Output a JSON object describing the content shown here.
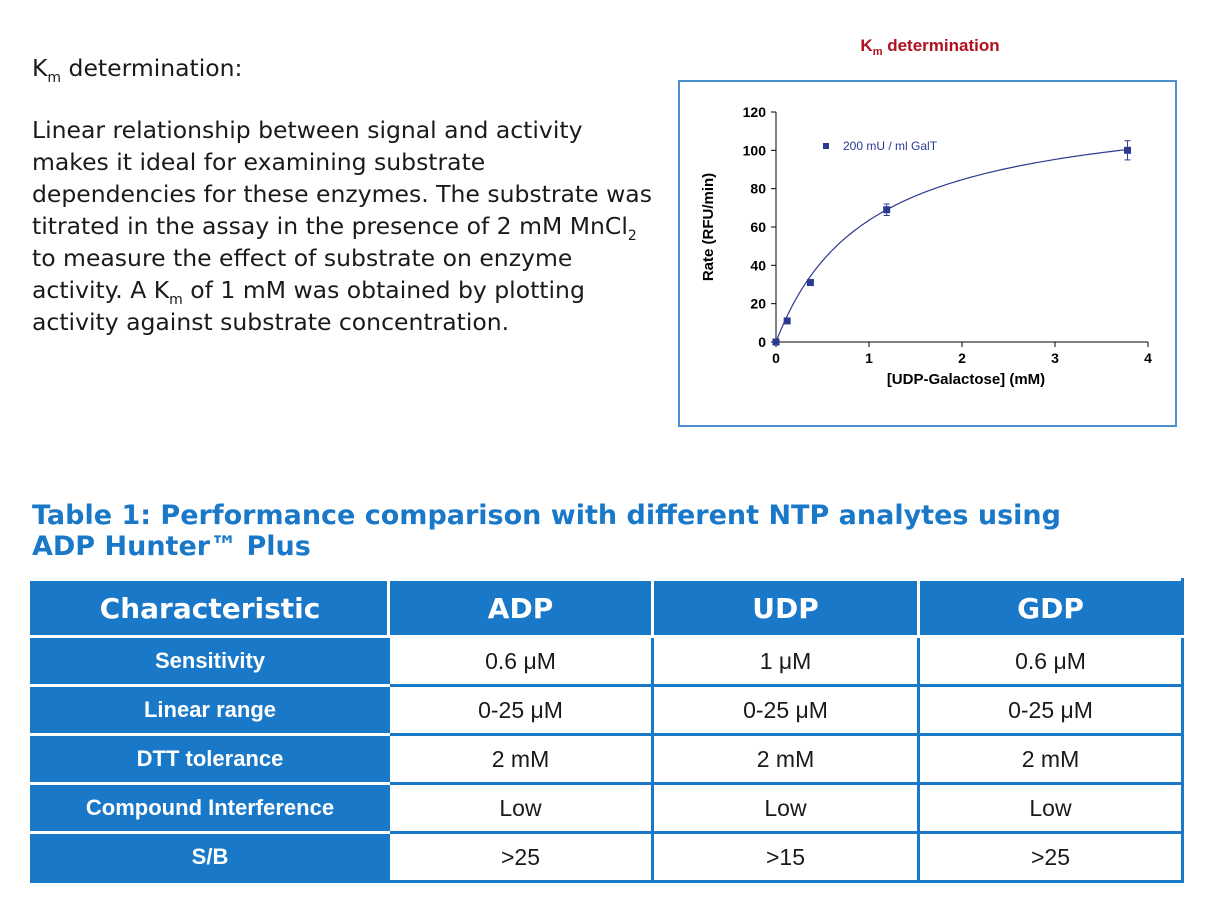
{
  "intro": {
    "heading_k": "K",
    "heading_sub": "m",
    "heading_rest": " determination:",
    "p_line1": "Linear relationship between signal and activity makes it ideal for examining substrate dependencies for these enzymes. The substrate was titrated in the assay in the presence of 2 mM MnCl",
    "p_sub1": "2",
    "p_line2": " to measure the effect of substrate on enzyme activity.  A K",
    "p_sub2": "m",
    "p_line3": " of 1 mM was obtained by plotting activity against substrate concentration."
  },
  "chart_title": {
    "k": "K",
    "sub": "m",
    "rest": " determination"
  },
  "colors": {
    "accent_blue": "#1a78c8",
    "chart_title_red": "#b01020",
    "series_navy": "#2b3a8f",
    "frame_blue": "#4a8fd0"
  },
  "chart_data": {
    "type": "scatter",
    "xlabel": "[UDP-Galactose] (mM)",
    "ylabel": "Rate (RFU/min)",
    "xlim": [
      0,
      4
    ],
    "ylim": [
      0,
      120
    ],
    "xticks": [
      "0",
      "1",
      "2",
      "3",
      "4"
    ],
    "yticks": [
      "0",
      "20",
      "40",
      "60",
      "80",
      "100",
      "120"
    ],
    "legend_position": "top-left",
    "grid": false,
    "series": [
      {
        "name": "200 mU / ml GalT",
        "x": [
          0,
          0.12,
          0.37,
          1.19,
          3.78
        ],
        "y": [
          0,
          11,
          31,
          69,
          100
        ],
        "error": [
          0,
          0,
          1.5,
          3,
          5
        ]
      }
    ],
    "fit": {
      "type": "michaelis-menten",
      "vmax": 127,
      "km": 1.0
    }
  },
  "table": {
    "title_line1": "Table 1:  Performance comparison with different NTP analytes using",
    "title_line2": "ADP Hunter™ Plus",
    "headers": [
      "Characteristic",
      "ADP",
      "UDP",
      "GDP"
    ],
    "rows": [
      [
        "Sensitivity",
        "0.6 μM",
        "1 μM",
        "0.6 μM"
      ],
      [
        "Linear range",
        "0-25 μM",
        "0-25 μM",
        "0-25 μM"
      ],
      [
        "DTT tolerance",
        "2 mM",
        "2 mM",
        "2 mM"
      ],
      [
        "Compound Interference",
        "Low",
        "Low",
        "Low"
      ],
      [
        "S/B",
        ">25",
        ">15",
        ">25"
      ]
    ]
  }
}
